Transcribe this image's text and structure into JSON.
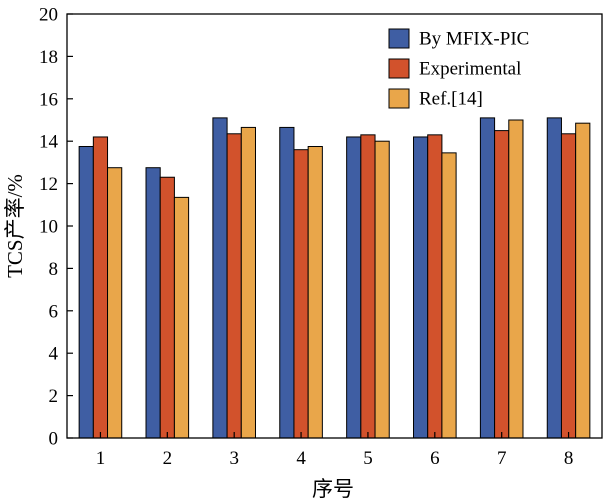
{
  "chart_data": {
    "type": "bar",
    "xlabel": "序号",
    "ylabel": "TCS产率/%",
    "categories": [
      "1",
      "2",
      "3",
      "4",
      "5",
      "6",
      "7",
      "8"
    ],
    "ylim": [
      0,
      20
    ],
    "yticks": [
      0,
      2,
      4,
      6,
      8,
      10,
      12,
      14,
      16,
      18,
      20
    ],
    "grid": false,
    "legend_position": "top-right",
    "series": [
      {
        "name": "By MFIX-PIC",
        "color": "#3f5ea3",
        "values": [
          13.75,
          12.75,
          15.1,
          14.65,
          14.2,
          14.2,
          15.1,
          15.1
        ]
      },
      {
        "name": "Experimental",
        "color": "#d2522c",
        "values": [
          14.2,
          12.3,
          14.35,
          13.6,
          14.3,
          14.3,
          14.5,
          14.35
        ]
      },
      {
        "name": "Ref.[14]",
        "color": "#e9a64a",
        "values": [
          12.75,
          11.35,
          14.65,
          13.75,
          14.0,
          13.45,
          15.0,
          14.85
        ]
      }
    ]
  }
}
